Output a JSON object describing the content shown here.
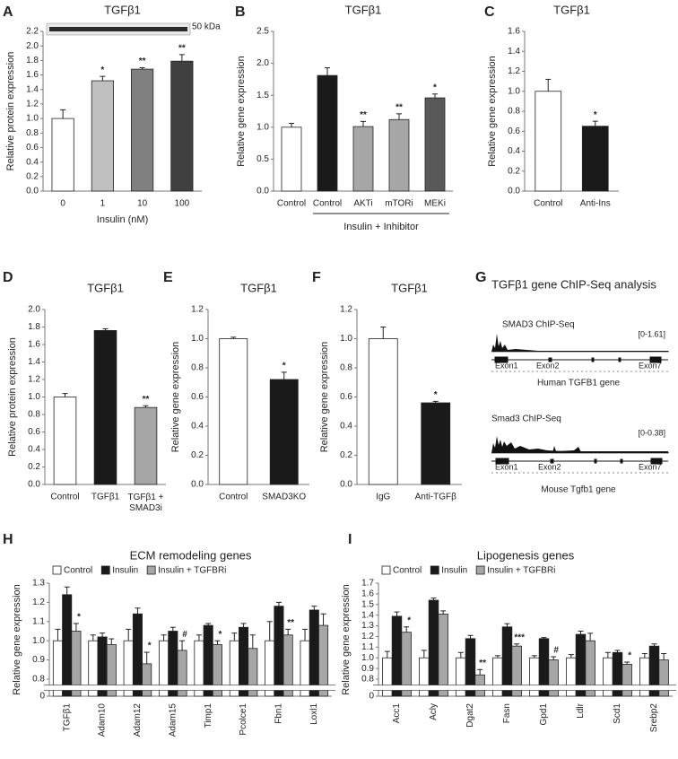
{
  "chart_data": [
    {
      "type": "bar",
      "label": "A",
      "title": "TGFβ1",
      "ylabel": "Relative protein expression",
      "xlabel": "Insulin (nM)",
      "inset_label": "50 kDa",
      "categories": [
        "0",
        "1",
        "10",
        "100"
      ],
      "values": [
        1.0,
        1.52,
        1.68,
        1.79
      ],
      "errors": [
        0.12,
        0.06,
        0.02,
        0.09
      ],
      "annotations": [
        null,
        "*",
        "**",
        "**"
      ],
      "colors": [
        "#ffffff",
        "#c0c0c0",
        "#808080",
        "#404040"
      ],
      "ylim": [
        0,
        2.2
      ],
      "yticks": [
        {
          "value": 0,
          "label": "0.0"
        },
        0.2,
        0.4,
        0.6,
        0.8,
        {
          "value": 1,
          "label": "1.0"
        },
        1.2,
        1.4,
        1.6,
        1.8,
        {
          "value": 2,
          "label": "2.0"
        },
        2.2
      ]
    },
    {
      "type": "bar",
      "label": "B",
      "title": "TGFβ1",
      "ylabel": "Relative gene expression",
      "xlabel": "Insulin + Inhibitor",
      "categories": [
        "Control",
        "Control",
        "AKTi",
        "mTORi",
        "MEKi"
      ],
      "values": [
        1.0,
        1.81,
        1.01,
        1.12,
        1.46
      ],
      "errors": [
        0.06,
        0.12,
        0.08,
        0.09,
        0.06
      ],
      "annotations": [
        null,
        null,
        "**",
        "**",
        "*"
      ],
      "colors": [
        "#ffffff",
        "#1a1a1a",
        "#a6a6a6",
        "#a6a6a6",
        "#595959"
      ],
      "ylim": [
        0,
        2.5
      ],
      "yticks": [
        {
          "value": 0,
          "label": "0.0"
        },
        0.5,
        {
          "value": 1,
          "label": "1.0"
        },
        1.5,
        {
          "value": 2,
          "label": "2.0"
        },
        2.5
      ]
    },
    {
      "type": "bar",
      "label": "C",
      "title": "TGFβ1",
      "ylabel": "Relative gene expression",
      "categories": [
        "Control",
        "Anti-Ins"
      ],
      "values": [
        1.0,
        0.65
      ],
      "errors": [
        0.12,
        0.05
      ],
      "annotations": [
        null,
        "*"
      ],
      "colors": [
        "#ffffff",
        "#1a1a1a"
      ],
      "ylim": [
        0,
        1.6
      ],
      "yticks": [
        {
          "value": 0,
          "label": "0.0"
        },
        0.2,
        0.4,
        0.6,
        0.8,
        {
          "value": 1,
          "label": "1.0"
        },
        1.2,
        1.4,
        1.6
      ]
    },
    {
      "type": "bar",
      "label": "D",
      "title": "TGFβ1",
      "ylabel": "Relative protein expression",
      "categories": [
        "Control",
        "TGFβ1",
        "TGFβ1 + SMAD3i"
      ],
      "values": [
        1.0,
        1.76,
        0.88
      ],
      "errors": [
        0.04,
        0.02,
        0.02
      ],
      "annotations": [
        null,
        null,
        "**"
      ],
      "colors": [
        "#ffffff",
        "#1a1a1a",
        "#a6a6a6"
      ],
      "ylim": [
        0,
        2
      ],
      "yticks": [
        {
          "value": 0,
          "label": "0.0"
        },
        0.2,
        0.4,
        0.6,
        0.8,
        {
          "value": 1,
          "label": "1.0"
        },
        1.2,
        1.4,
        1.6,
        1.8,
        {
          "value": 2,
          "label": "2.0"
        }
      ]
    },
    {
      "type": "bar",
      "label": "E",
      "title": "TGFβ1",
      "ylabel": "Relative gene expression",
      "categories": [
        "Control",
        "SMAD3KO"
      ],
      "values": [
        1.0,
        0.72
      ],
      "errors": [
        0.01,
        0.05
      ],
      "annotations": [
        null,
        "*"
      ],
      "colors": [
        "#ffffff",
        "#1a1a1a"
      ],
      "ylim": [
        0,
        1.2
      ],
      "yticks": [
        {
          "value": 0,
          "label": "0.0"
        },
        0.2,
        0.4,
        0.6,
        0.8,
        {
          "value": 1,
          "label": "1.0"
        },
        1.2
      ]
    },
    {
      "type": "bar",
      "label": "F",
      "title": "TGFβ1",
      "ylabel": "Relative gene expression",
      "categories": [
        "IgG",
        "Anti-TGFβ"
      ],
      "values": [
        1.0,
        0.56
      ],
      "errors": [
        0.08,
        0.01
      ],
      "annotations": [
        null,
        "*"
      ],
      "colors": [
        "#ffffff",
        "#1a1a1a"
      ],
      "ylim": [
        0,
        1.2
      ],
      "yticks": [
        {
          "value": 0,
          "label": "0.0"
        },
        0.2,
        0.4,
        0.6,
        0.8,
        {
          "value": 1,
          "label": "1.0"
        },
        1.2
      ]
    },
    {
      "type": "grouped_bar",
      "label": "H",
      "title": "ECM remodeling genes",
      "ylabel": "Relative gene expression",
      "axis_break": true,
      "categories": [
        "TGFβ1",
        "Adam10",
        "Adam12",
        "Adam15",
        "Timp1",
        "Pcolce1",
        "Fbn1",
        "Loxl1"
      ],
      "series": [
        {
          "name": "Control",
          "color": "#ffffff",
          "values": [
            1.0,
            1.0,
            1.0,
            1.0,
            1.0,
            1.0,
            1.0,
            1.0
          ],
          "errors": [
            0.06,
            0.03,
            0.06,
            0.03,
            0.03,
            0.04,
            0.1,
            0.06
          ]
        },
        {
          "name": "Insulin",
          "color": "#1a1a1a",
          "values": [
            1.24,
            1.02,
            1.14,
            1.05,
            1.08,
            1.07,
            1.18,
            1.16
          ],
          "errors": [
            0.04,
            0.02,
            0.03,
            0.02,
            0.01,
            0.02,
            0.02,
            0.02
          ]
        },
        {
          "name": "Insulin + TGFBRi",
          "color": "#a6a6a6",
          "values": [
            1.05,
            0.98,
            0.88,
            0.95,
            0.98,
            0.96,
            1.03,
            1.08
          ],
          "errors": [
            0.04,
            0.03,
            0.06,
            0.05,
            0.02,
            0.07,
            0.03,
            0.06
          ],
          "annotations": [
            "*",
            null,
            "*",
            "#",
            "*",
            null,
            "**",
            null
          ]
        }
      ],
      "ylim": [
        0.8,
        1.3
      ],
      "yticks": [
        0,
        0.8,
        0.9,
        {
          "value": 1,
          "label": "1.0"
        },
        1.1,
        1.2,
        1.3
      ]
    },
    {
      "type": "grouped_bar",
      "label": "I",
      "title": "Lipogenesis genes",
      "ylabel": "Relative gene expression",
      "axis_break": true,
      "categories": [
        "Acc1",
        "Acly",
        "Dgat2",
        "Fasn",
        "Gpd1",
        "Ldlr",
        "Scd1",
        "Srebp2"
      ],
      "series": [
        {
          "name": "Control",
          "color": "#ffffff",
          "values": [
            1.0,
            1.0,
            1.0,
            1.0,
            1.0,
            1.0,
            1.0,
            1.0
          ],
          "errors": [
            0.06,
            0.07,
            0.05,
            0.02,
            0.02,
            0.03,
            0.05,
            0.04
          ]
        },
        {
          "name": "Insulin",
          "color": "#1a1a1a",
          "values": [
            1.39,
            1.54,
            1.18,
            1.29,
            1.18,
            1.22,
            1.05,
            1.11
          ],
          "errors": [
            0.04,
            0.02,
            0.03,
            0.03,
            0.01,
            0.03,
            0.02,
            0.02
          ]
        },
        {
          "name": "Insulin + TGFBRi",
          "color": "#a6a6a6",
          "values": [
            1.24,
            1.41,
            0.84,
            1.11,
            0.98,
            1.16,
            0.94,
            0.98
          ],
          "errors": [
            0.05,
            0.03,
            0.05,
            0.02,
            0.03,
            0.07,
            0.02,
            0.06
          ],
          "annotations": [
            "*",
            null,
            "**",
            "***",
            "#",
            null,
            "*",
            null
          ]
        }
      ],
      "ylim": [
        0.8,
        1.7
      ],
      "yticks": [
        0,
        0.8,
        0.9,
        {
          "value": 1,
          "label": "1.0"
        },
        1.1,
        1.2,
        1.3,
        1.4,
        1.5,
        1.6,
        1.7
      ]
    }
  ],
  "chip_seq_panel": {
    "label": "G",
    "title": "TGFβ1 gene ChIP-Seq analysis",
    "tracks": [
      {
        "name": "SMAD3 ChIP-Seq",
        "range": "[0-1.61]",
        "exons": [
          "Exon1",
          "Exon2",
          "Exon7"
        ],
        "gene": "Human TGFB1 gene"
      },
      {
        "name": "Smad3 ChIP-Seq",
        "range": "[0-0.38]",
        "exons": [
          "Exon1",
          "Exon2",
          "Exon7"
        ],
        "gene": "Mouse Tgfb1 gene"
      }
    ]
  }
}
